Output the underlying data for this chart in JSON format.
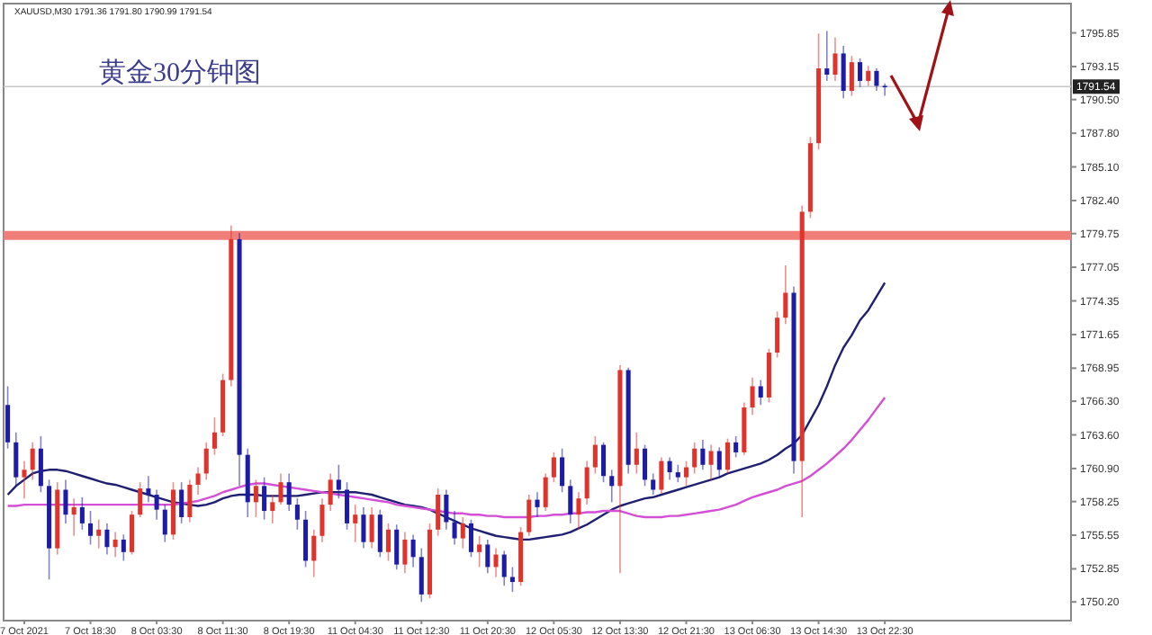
{
  "chart_data": {
    "type": "candlestick",
    "title": "黄金30分钟图",
    "annotations": [
      "XAUUSD,M30 1791.36 1791.80 1790.99 1791.54"
    ],
    "categories": [
      null,
      null,
      "7 Oct 2021",
      null,
      null,
      null,
      null,
      null,
      null,
      null,
      "7 Oct 18:30",
      null,
      null,
      null,
      null,
      null,
      null,
      null,
      "8 Oct 03:30",
      null,
      null,
      null,
      null,
      null,
      null,
      null,
      "8 Oct 11:30",
      null,
      null,
      null,
      null,
      null,
      null,
      null,
      "8 Oct 19:30",
      null,
      null,
      null,
      null,
      null,
      null,
      null,
      "11 Oct 04:30",
      null,
      null,
      null,
      null,
      null,
      null,
      null,
      "11 Oct 12:30",
      null,
      null,
      null,
      null,
      null,
      null,
      null,
      "11 Oct 20:30",
      null,
      null,
      null,
      null,
      null,
      null,
      null,
      "12 Oct 05:30",
      null,
      null,
      null,
      null,
      null,
      null,
      null,
      "12 Oct 13:30",
      null,
      null,
      null,
      null,
      null,
      null,
      null,
      "12 Oct 21:30",
      null,
      null,
      null,
      null,
      null,
      null,
      null,
      "13 Oct 06:30",
      null,
      null,
      null,
      null,
      null,
      null,
      null,
      "13 Oct 14:30",
      null,
      null,
      null,
      null,
      null,
      null,
      null,
      "13 Oct 22:30"
    ],
    "ohlc": [
      [
        1766.0,
        1767.5,
        1762.5,
        1763.0
      ],
      [
        1763.0,
        1763.8,
        1759.5,
        1760.2
      ],
      [
        1760.2,
        1761.5,
        1758.5,
        1760.8
      ],
      [
        1760.8,
        1763.0,
        1760.0,
        1762.5
      ],
      [
        1762.5,
        1763.5,
        1759.0,
        1759.5
      ],
      [
        1759.5,
        1760.0,
        1752.0,
        1754.5
      ],
      [
        1754.5,
        1759.8,
        1754.0,
        1759.2
      ],
      [
        1759.2,
        1760.0,
        1756.5,
        1757.2
      ],
      [
        1757.2,
        1758.5,
        1755.5,
        1757.8
      ],
      [
        1757.8,
        1758.6,
        1756.0,
        1756.5
      ],
      [
        1756.5,
        1757.5,
        1754.8,
        1755.5
      ],
      [
        1755.5,
        1756.8,
        1754.5,
        1756.0
      ],
      [
        1756.0,
        1756.5,
        1754.0,
        1754.6
      ],
      [
        1754.6,
        1755.8,
        1753.8,
        1755.2
      ],
      [
        1755.2,
        1755.6,
        1753.5,
        1754.2
      ],
      [
        1754.2,
        1757.5,
        1754.0,
        1757.2
      ],
      [
        1757.2,
        1759.8,
        1757.0,
        1759.3
      ],
      [
        1759.3,
        1760.3,
        1758.2,
        1758.8
      ],
      [
        1758.8,
        1759.2,
        1756.8,
        1757.6
      ],
      [
        1757.6,
        1758.0,
        1755.0,
        1755.6
      ],
      [
        1755.6,
        1759.8,
        1755.2,
        1759.2
      ],
      [
        1759.2,
        1759.8,
        1756.5,
        1757.0
      ],
      [
        1757.0,
        1760.0,
        1756.6,
        1759.6
      ],
      [
        1759.6,
        1761.0,
        1758.8,
        1760.5
      ],
      [
        1760.5,
        1763.0,
        1760.0,
        1762.5
      ],
      [
        1762.5,
        1765.0,
        1762.0,
        1763.8
      ],
      [
        1763.8,
        1768.5,
        1763.5,
        1768.0
      ],
      [
        1768.0,
        1780.4,
        1767.5,
        1779.3
      ],
      [
        1779.3,
        1779.8,
        1759.5,
        1762.0
      ],
      [
        1762.0,
        1762.5,
        1757.0,
        1758.2
      ],
      [
        1758.2,
        1760.0,
        1757.0,
        1759.5
      ],
      [
        1759.5,
        1760.2,
        1756.8,
        1757.5
      ],
      [
        1757.5,
        1758.8,
        1756.5,
        1758.2
      ],
      [
        1758.2,
        1760.5,
        1758.0,
        1759.8
      ],
      [
        1759.8,
        1760.5,
        1757.5,
        1758.0
      ],
      [
        1758.0,
        1758.5,
        1756.0,
        1756.8
      ],
      [
        1756.8,
        1757.5,
        1753.0,
        1753.5
      ],
      [
        1753.5,
        1756.0,
        1752.2,
        1755.5
      ],
      [
        1755.5,
        1758.5,
        1755.0,
        1758.0
      ],
      [
        1758.0,
        1760.5,
        1757.5,
        1760.0
      ],
      [
        1760.0,
        1761.2,
        1758.5,
        1759.2
      ],
      [
        1759.2,
        1759.8,
        1756.0,
        1756.5
      ],
      [
        1756.5,
        1758.0,
        1755.0,
        1757.2
      ],
      [
        1757.2,
        1757.8,
        1754.5,
        1755.0
      ],
      [
        1755.0,
        1757.8,
        1754.5,
        1757.2
      ],
      [
        1757.2,
        1757.6,
        1753.8,
        1754.2
      ],
      [
        1754.2,
        1756.5,
        1753.5,
        1756.0
      ],
      [
        1756.0,
        1756.4,
        1752.8,
        1753.2
      ],
      [
        1753.2,
        1755.8,
        1752.5,
        1755.2
      ],
      [
        1755.2,
        1755.6,
        1753.0,
        1753.8
      ],
      [
        1753.8,
        1754.5,
        1750.2,
        1750.8
      ],
      [
        1750.8,
        1756.5,
        1750.5,
        1756.0
      ],
      [
        1756.0,
        1759.3,
        1755.5,
        1758.8
      ],
      [
        1758.8,
        1759.2,
        1756.0,
        1756.6
      ],
      [
        1756.6,
        1757.5,
        1754.8,
        1755.3
      ],
      [
        1755.3,
        1757.0,
        1754.5,
        1756.5
      ],
      [
        1756.5,
        1756.8,
        1753.8,
        1754.2
      ],
      [
        1754.2,
        1755.5,
        1753.0,
        1754.8
      ],
      [
        1754.8,
        1755.2,
        1752.5,
        1753.0
      ],
      [
        1753.0,
        1754.5,
        1752.2,
        1754.0
      ],
      [
        1754.0,
        1754.3,
        1751.5,
        1752.2
      ],
      [
        1752.2,
        1753.0,
        1751.0,
        1751.8
      ],
      [
        1751.8,
        1756.2,
        1751.5,
        1755.8
      ],
      [
        1755.8,
        1758.8,
        1755.5,
        1758.4
      ],
      [
        1758.4,
        1759.0,
        1757.0,
        1757.8
      ],
      [
        1757.8,
        1760.5,
        1757.5,
        1760.2
      ],
      [
        1760.2,
        1762.2,
        1759.8,
        1761.8
      ],
      [
        1761.8,
        1762.5,
        1759.0,
        1759.5
      ],
      [
        1759.5,
        1760.0,
        1756.5,
        1757.2
      ],
      [
        1757.2,
        1759.0,
        1756.0,
        1758.5
      ],
      [
        1758.5,
        1761.5,
        1758.0,
        1761.0
      ],
      [
        1761.0,
        1763.5,
        1760.5,
        1762.8
      ],
      [
        1762.8,
        1763.0,
        1759.8,
        1760.3
      ],
      [
        1760.3,
        1760.8,
        1758.2,
        1759.5
      ],
      [
        1759.5,
        1769.2,
        1752.5,
        1768.8
      ],
      [
        1768.8,
        1769.0,
        1760.5,
        1761.2
      ],
      [
        1761.2,
        1763.8,
        1760.5,
        1762.5
      ],
      [
        1762.5,
        1762.8,
        1759.5,
        1760.0
      ],
      [
        1760.0,
        1760.5,
        1758.8,
        1759.2
      ],
      [
        1759.2,
        1761.8,
        1758.9,
        1761.5
      ],
      [
        1761.5,
        1761.8,
        1760.0,
        1760.6
      ],
      [
        1760.6,
        1761.2,
        1759.8,
        1760.2
      ],
      [
        1760.2,
        1761.5,
        1759.5,
        1761.0
      ],
      [
        1761.0,
        1763.0,
        1760.5,
        1762.5
      ],
      [
        1762.5,
        1763.2,
        1760.8,
        1761.2
      ],
      [
        1761.2,
        1762.8,
        1760.0,
        1762.3
      ],
      [
        1762.3,
        1762.6,
        1760.2,
        1760.8
      ],
      [
        1760.8,
        1763.3,
        1760.5,
        1763.0
      ],
      [
        1763.0,
        1763.5,
        1761.8,
        1762.2
      ],
      [
        1762.2,
        1766.2,
        1762.0,
        1765.8
      ],
      [
        1765.8,
        1768.2,
        1765.2,
        1767.5
      ],
      [
        1767.5,
        1768.0,
        1766.0,
        1766.6
      ],
      [
        1766.6,
        1770.5,
        1766.2,
        1770.2
      ],
      [
        1770.2,
        1773.5,
        1769.8,
        1773.0
      ],
      [
        1773.0,
        1777.2,
        1772.5,
        1775.0
      ],
      [
        1775.0,
        1775.5,
        1760.5,
        1761.5
      ],
      [
        1761.5,
        1782.0,
        1757.0,
        1781.5
      ],
      [
        1781.5,
        1787.5,
        1781.0,
        1787.0
      ],
      [
        1787.0,
        1795.8,
        1786.5,
        1793.0
      ],
      [
        1793.0,
        1796.0,
        1792.0,
        1792.5
      ],
      [
        1792.5,
        1795.5,
        1792.0,
        1794.2
      ],
      [
        1794.2,
        1794.8,
        1790.6,
        1791.2
      ],
      [
        1791.2,
        1794.0,
        1790.8,
        1793.5
      ],
      [
        1793.5,
        1793.8,
        1791.5,
        1792.0
      ],
      [
        1792.0,
        1793.2,
        1791.6,
        1792.8
      ],
      [
        1792.8,
        1793.0,
        1791.2,
        1791.6
      ],
      [
        1791.6,
        1791.8,
        1790.8,
        1791.5
      ]
    ],
    "colors": [
      "#1c1ca8",
      "#1c1ca8",
      "#e0332c",
      "#e0332c",
      "#1c1ca8",
      "#1c1ca8",
      "#e0332c",
      "#1c1ca8",
      "#e0332c",
      "#1c1ca8",
      "#1c1ca8",
      "#e0332c",
      "#1c1ca8",
      "#e0332c",
      "#1c1ca8",
      "#e0332c",
      "#e0332c",
      "#1c1ca8",
      "#1c1ca8",
      "#1c1ca8",
      "#e0332c",
      "#1c1ca8",
      "#e0332c",
      "#e0332c",
      "#e0332c",
      "#e0332c",
      "#e0332c",
      "#e0332c",
      "#1c1ca8",
      "#1c1ca8",
      "#e0332c",
      "#1c1ca8",
      "#e0332c",
      "#e0332c",
      "#1c1ca8",
      "#1c1ca8",
      "#1c1ca8",
      "#e0332c",
      "#e0332c",
      "#e0332c",
      "#1c1ca8",
      "#1c1ca8",
      "#e0332c",
      "#1c1ca8",
      "#e0332c",
      "#1c1ca8",
      "#e0332c",
      "#1c1ca8",
      "#e0332c",
      "#1c1ca8",
      "#1c1ca8",
      "#e0332c",
      "#e0332c",
      "#1c1ca8",
      "#1c1ca8",
      "#e0332c",
      "#1c1ca8",
      "#e0332c",
      "#1c1ca8",
      "#e0332c",
      "#1c1ca8",
      "#1c1ca8",
      "#e0332c",
      "#e0332c",
      "#1c1ca8",
      "#e0332c",
      "#e0332c",
      "#1c1ca8",
      "#1c1ca8",
      "#e0332c",
      "#e0332c",
      "#e0332c",
      "#1c1ca8",
      "#1c1ca8",
      "#e0332c",
      "#1c1ca8",
      "#e0332c",
      "#1c1ca8",
      "#1c1ca8",
      "#e0332c",
      "#1c1ca8",
      "#1c1ca8",
      "#e0332c",
      "#e0332c",
      "#1c1ca8",
      "#e0332c",
      "#1c1ca8",
      "#e0332c",
      "#1c1ca8",
      "#e0332c",
      "#e0332c",
      "#1c1ca8",
      "#e0332c",
      "#e0332c",
      "#e0332c",
      "#1c1ca8",
      "#e0332c",
      "#e0332c",
      "#e0332c",
      "#1c1ca8",
      "#e0332c",
      "#1c1ca8",
      "#e0332c",
      "#1c1ca8",
      "#e0332c",
      "#1c1ca8",
      "#1c1ca8"
    ],
    "series": [
      {
        "type": "line",
        "color": "#1f2070",
        "values": [
          1758.8,
          1759.5,
          1760.0,
          1760.5,
          1760.7,
          1760.8,
          1760.8,
          1760.7,
          1760.5,
          1760.3,
          1760.1,
          1759.9,
          1759.7,
          1759.6,
          1759.4,
          1759.2,
          1759.0,
          1758.8,
          1758.6,
          1758.4,
          1758.2,
          1758.1,
          1758.0,
          1757.9,
          1758.0,
          1758.2,
          1758.5,
          1758.7,
          1758.8,
          1758.8,
          1758.8,
          1758.7,
          1758.7,
          1758.7,
          1758.7,
          1758.7,
          1758.8,
          1758.9,
          1759.0,
          1759.0,
          1759.0,
          1759.0,
          1759.0,
          1758.9,
          1758.8,
          1758.6,
          1758.4,
          1758.2,
          1758.0,
          1757.9,
          1757.8,
          1757.6,
          1757.3,
          1757.0,
          1756.7,
          1756.4,
          1756.1,
          1755.9,
          1755.7,
          1755.5,
          1755.4,
          1755.3,
          1755.2,
          1755.2,
          1755.3,
          1755.4,
          1755.5,
          1755.6,
          1755.8,
          1756.1,
          1756.4,
          1756.8,
          1757.2,
          1757.6,
          1757.9,
          1758.1,
          1758.3,
          1758.5,
          1758.6,
          1758.8,
          1759.0,
          1759.2,
          1759.4,
          1759.6,
          1759.8,
          1760.0,
          1760.2,
          1760.5,
          1760.7,
          1760.9,
          1761.1,
          1761.3,
          1761.6,
          1762.0,
          1762.5,
          1762.9,
          1763.6,
          1764.8,
          1766.0,
          1767.5,
          1769.2,
          1770.6,
          1771.6,
          1772.8,
          1773.6,
          1774.7,
          1775.8
        ]
      },
      {
        "type": "line",
        "color": "#d24fd6",
        "values": [
          1757.9,
          1757.9,
          1758.0,
          1758.0,
          1758.0,
          1758.0,
          1758.0,
          1758.0,
          1758.0,
          1758.0,
          1758.0,
          1758.0,
          1758.0,
          1758.0,
          1758.0,
          1758.0,
          1758.0,
          1758.0,
          1758.0,
          1758.0,
          1758.0,
          1758.1,
          1758.2,
          1758.3,
          1758.5,
          1758.7,
          1759.0,
          1759.2,
          1759.4,
          1759.6,
          1759.7,
          1759.7,
          1759.6,
          1759.5,
          1759.4,
          1759.3,
          1759.2,
          1759.1,
          1759.0,
          1758.9,
          1758.8,
          1758.7,
          1758.6,
          1758.5,
          1758.4,
          1758.3,
          1758.2,
          1758.0,
          1757.9,
          1757.8,
          1757.7,
          1757.6,
          1757.5,
          1757.4,
          1757.3,
          1757.3,
          1757.2,
          1757.2,
          1757.1,
          1757.1,
          1757.0,
          1757.0,
          1757.0,
          1757.0,
          1757.1,
          1757.1,
          1757.2,
          1757.2,
          1757.3,
          1757.3,
          1757.4,
          1757.4,
          1757.5,
          1757.5,
          1757.5,
          1757.3,
          1757.1,
          1757.0,
          1757.0,
          1757.0,
          1757.1,
          1757.1,
          1757.2,
          1757.3,
          1757.4,
          1757.5,
          1757.6,
          1757.8,
          1758.0,
          1758.3,
          1758.6,
          1758.8,
          1759.0,
          1759.2,
          1759.5,
          1759.7,
          1759.9,
          1760.3,
          1760.8,
          1761.3,
          1761.9,
          1762.5,
          1763.2,
          1764.0,
          1764.8,
          1765.7,
          1766.6
        ]
      }
    ],
    "ylim": [
      1748.7,
      1798.2
    ],
    "yticks": [
      1795.85,
      1793.15,
      {
        "value": 1790.5,
        "label": "1790.50"
      },
      {
        "value": 1787.8,
        "label": "1787.80"
      },
      {
        "value": 1785.1,
        "label": "1785.10"
      },
      {
        "value": 1782.4,
        "label": "1782.40"
      },
      1779.75,
      1777.05,
      1774.35,
      1771.65,
      1768.95,
      {
        "value": 1766.3,
        "label": "1766.30"
      },
      {
        "value": 1763.6,
        "label": "1763.60"
      },
      {
        "value": 1760.9,
        "label": "1760.90"
      },
      1758.25,
      1755.55,
      1752.85,
      {
        "value": 1750.2,
        "label": "1750.20"
      }
    ],
    "ref_lines": [
      {
        "axis": "y",
        "value": 1779.6,
        "color": "#f07f7a"
      },
      {
        "axis": "y",
        "value": 1791.54,
        "label": "1791.54",
        "color": "#c8c8c8"
      }
    ],
    "grid": false
  }
}
